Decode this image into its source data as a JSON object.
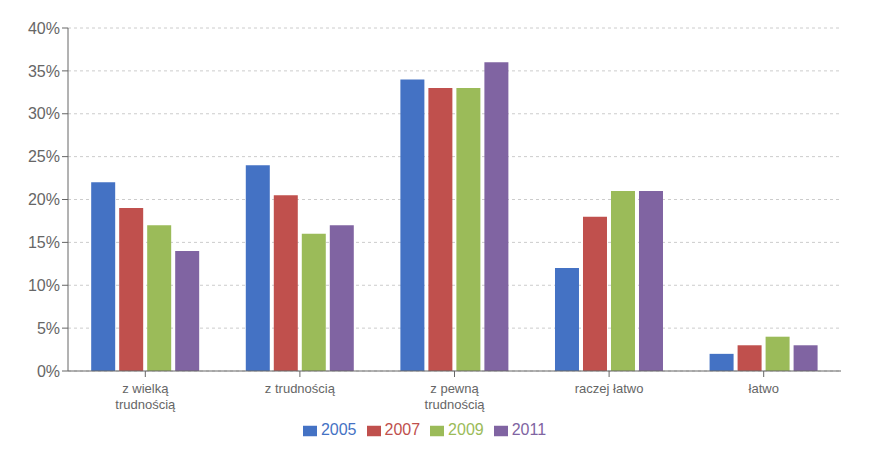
{
  "chart_data": {
    "type": "bar",
    "categories": [
      "z wielką\ntrudnością",
      "z trudnością",
      "z pewną\ntrudnością",
      "raczej łatwo",
      "łatwo"
    ],
    "series": [
      {
        "name": "2005",
        "color": "#4472C4",
        "values": [
          0.22,
          0.24,
          0.34,
          0.12,
          0.02
        ]
      },
      {
        "name": "2007",
        "color": "#C0504D",
        "values": [
          0.19,
          0.205,
          0.33,
          0.18,
          0.03
        ]
      },
      {
        "name": "2009",
        "color": "#9BBB59",
        "values": [
          0.17,
          0.16,
          0.33,
          0.21,
          0.04
        ]
      },
      {
        "name": "2011",
        "color": "#8064A2",
        "values": [
          0.14,
          0.17,
          0.36,
          0.21,
          0.03
        ]
      }
    ],
    "ylim": [
      0,
      0.4
    ],
    "yticks": [
      {
        "value": 0.0,
        "label": "0%"
      },
      {
        "value": 0.05,
        "label": "5%"
      },
      {
        "value": 0.1,
        "label": "10%"
      },
      {
        "value": 0.15,
        "label": "15%"
      },
      {
        "value": 0.2,
        "label": "20%"
      },
      {
        "value": 0.25,
        "label": "25%"
      },
      {
        "value": 0.3,
        "label": "30%"
      },
      {
        "value": 0.35,
        "label": "35%"
      },
      {
        "value": 0.4,
        "label": "40%"
      }
    ],
    "grid": true,
    "legend": "bottom"
  }
}
